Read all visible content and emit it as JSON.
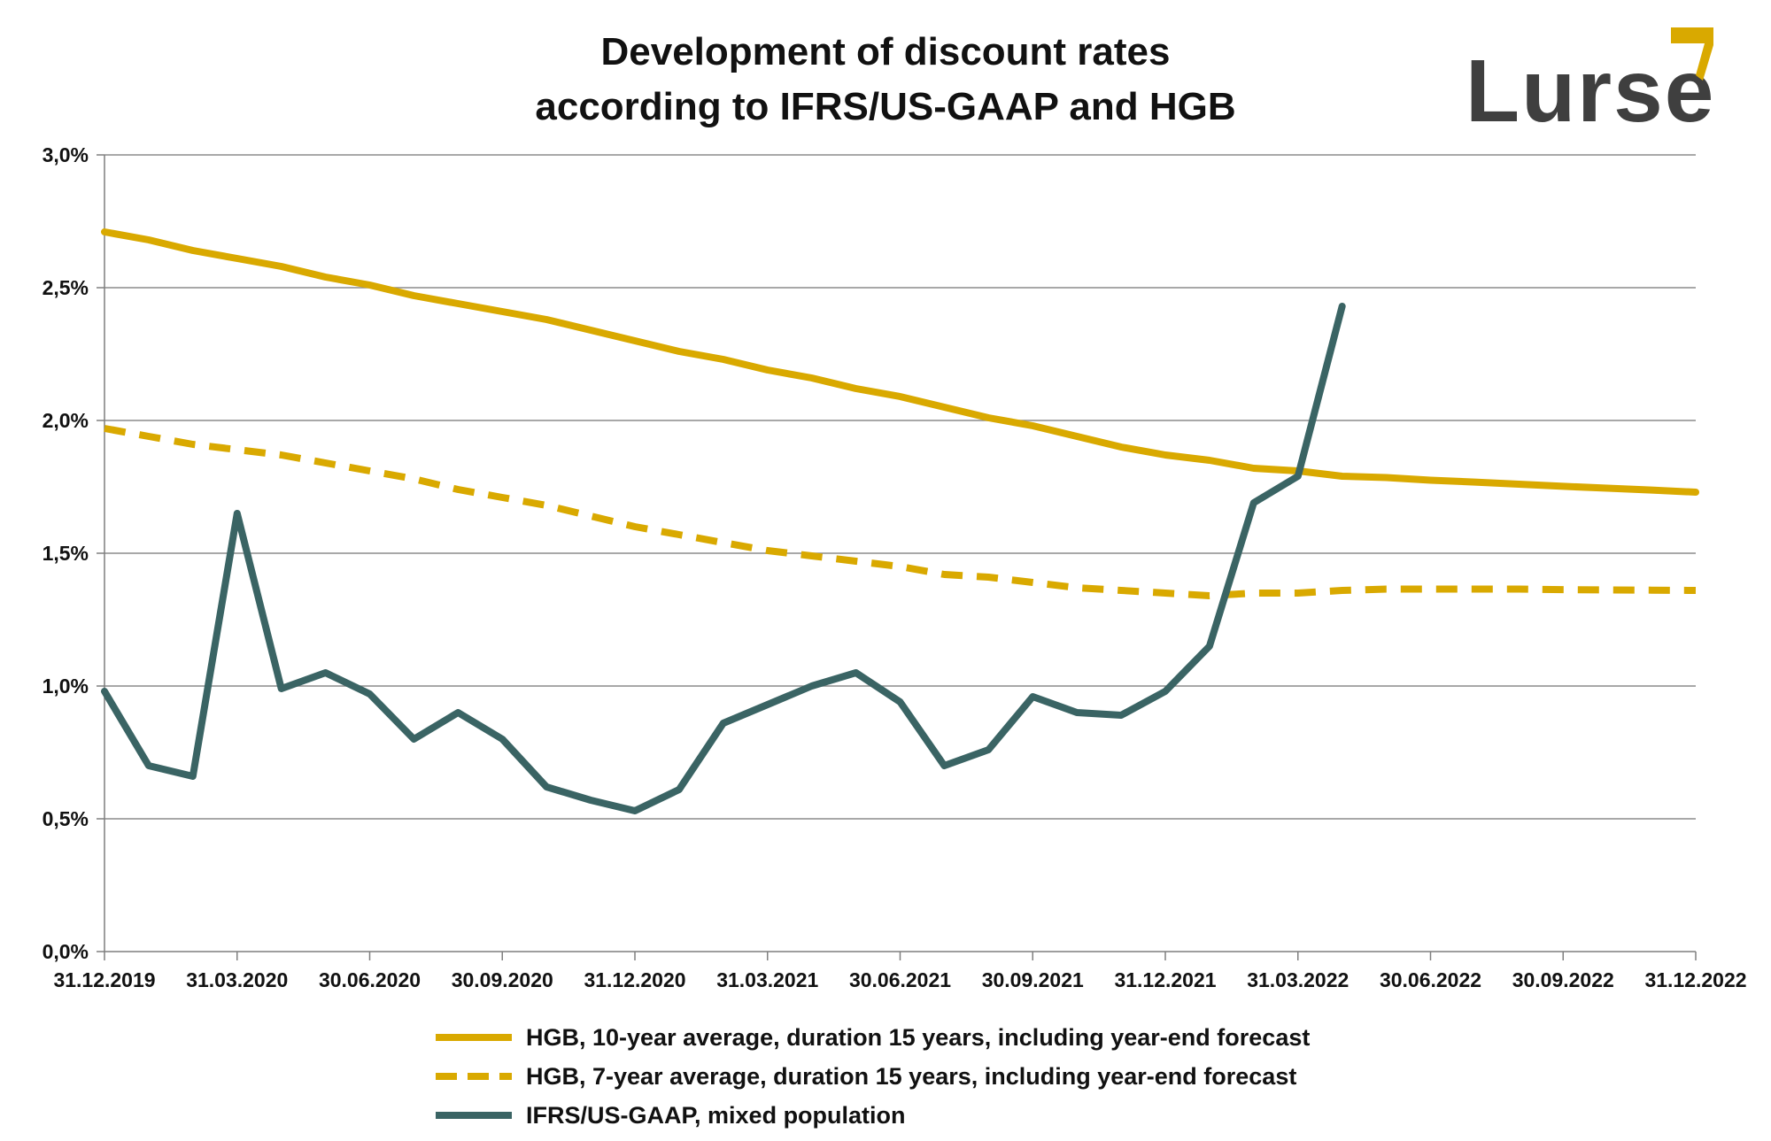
{
  "logo": {
    "text": "Lurse",
    "text_color": "#3f3f3f",
    "mark_color": "#d9a900"
  },
  "chart_data": {
    "type": "line",
    "title_lines": [
      "Development of discount rates",
      "according to IFRS/US-GAAP and HGB"
    ],
    "x_tick_labels": [
      "31.12.2019",
      "31.03.2020",
      "30.06.2020",
      "30.09.2020",
      "31.12.2020",
      "31.03.2021",
      "30.06.2021",
      "30.09.2021",
      "31.12.2021",
      "31.03.2022",
      "30.06.2022",
      "30.09.2022",
      "31.12.2022"
    ],
    "y_tick_labels": [
      "0,0%",
      "0,5%",
      "1,0%",
      "1,5%",
      "2,0%",
      "2,5%",
      "3,0%"
    ],
    "y_ticks": [
      0,
      0.5,
      1.0,
      1.5,
      2.0,
      2.5,
      3.0
    ],
    "ylim": [
      0,
      3.0
    ],
    "x_months_count": 36,
    "grid": true,
    "legend_position": "bottom",
    "series": [
      {
        "name": "HGB, 10-year average, duration 15 years, including year-end forecast",
        "color": "#d9a900",
        "style": "solid",
        "values": [
          2.71,
          2.68,
          2.64,
          2.61,
          2.58,
          2.54,
          2.51,
          2.47,
          2.44,
          2.41,
          2.38,
          2.34,
          2.3,
          2.26,
          2.23,
          2.19,
          2.16,
          2.12,
          2.09,
          2.05,
          2.01,
          1.98,
          1.94,
          1.9,
          1.87,
          1.85,
          1.82,
          1.81,
          1.79,
          1.785,
          1.775,
          1.768,
          1.76,
          1.752,
          1.745,
          1.738,
          1.73
        ]
      },
      {
        "name": "HGB, 7-year average, duration 15 years, including year-end forecast",
        "color": "#d9a900",
        "style": "dashed",
        "values": [
          1.97,
          1.94,
          1.91,
          1.89,
          1.87,
          1.84,
          1.81,
          1.78,
          1.74,
          1.71,
          1.68,
          1.64,
          1.6,
          1.57,
          1.54,
          1.51,
          1.49,
          1.47,
          1.45,
          1.42,
          1.41,
          1.39,
          1.37,
          1.36,
          1.35,
          1.34,
          1.35,
          1.35,
          1.36,
          1.365,
          1.365,
          1.365,
          1.365,
          1.363,
          1.362,
          1.361,
          1.36
        ]
      },
      {
        "name": "IFRS/US-GAAP, mixed population",
        "color": "#3a6464",
        "style": "solid",
        "values": [
          0.98,
          0.7,
          0.66,
          1.65,
          0.99,
          1.05,
          0.97,
          0.8,
          0.9,
          0.8,
          0.62,
          0.57,
          0.53,
          0.61,
          0.86,
          0.93,
          1.0,
          1.05,
          0.94,
          0.7,
          0.76,
          0.96,
          0.9,
          0.89,
          0.98,
          1.15,
          1.69,
          1.79,
          2.43
        ]
      }
    ]
  }
}
